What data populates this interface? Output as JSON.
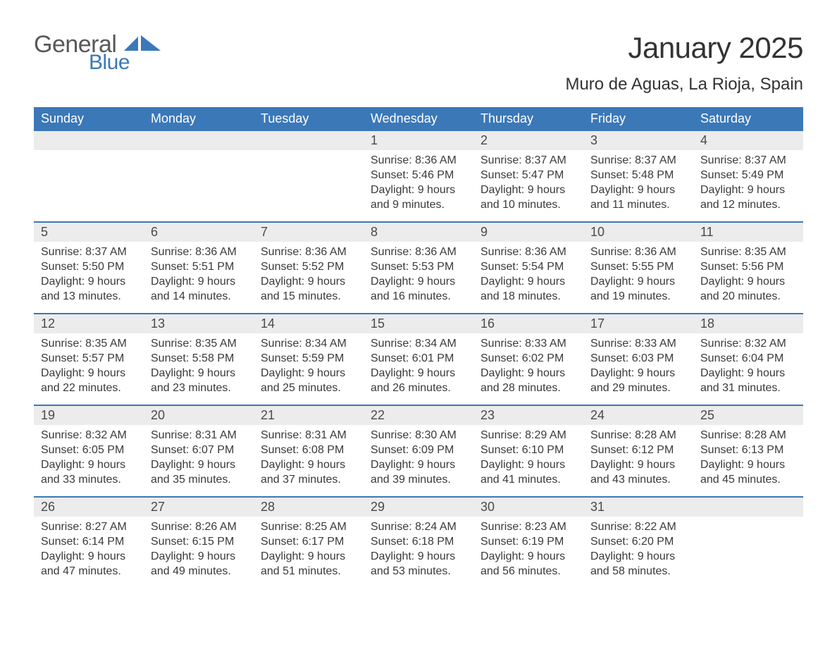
{
  "logo": {
    "word1": "General",
    "word2": "Blue",
    "shape_color": "#3b78b8"
  },
  "title": "January 2025",
  "location": "Muro de Aguas, La Rioja, Spain",
  "styling": {
    "header_bg": "#3b78b8",
    "header_text_color": "#ffffff",
    "daynum_bg": "#ececec",
    "page_bg": "#ffffff",
    "body_text_color": "#3a3a3a",
    "week_border_color": "#3b78b8",
    "title_fontsize": 42,
    "location_fontsize": 24,
    "header_fontsize": 18,
    "daynum_fontsize": 18,
    "body_fontsize": 16
  },
  "day_headers": [
    "Sunday",
    "Monday",
    "Tuesday",
    "Wednesday",
    "Thursday",
    "Friday",
    "Saturday"
  ],
  "weeks": [
    [
      {
        "n": "",
        "lines": []
      },
      {
        "n": "",
        "lines": []
      },
      {
        "n": "",
        "lines": []
      },
      {
        "n": "1",
        "lines": [
          "Sunrise: 8:36 AM",
          "Sunset: 5:46 PM",
          "Daylight: 9 hours",
          "and 9 minutes."
        ]
      },
      {
        "n": "2",
        "lines": [
          "Sunrise: 8:37 AM",
          "Sunset: 5:47 PM",
          "Daylight: 9 hours",
          "and 10 minutes."
        ]
      },
      {
        "n": "3",
        "lines": [
          "Sunrise: 8:37 AM",
          "Sunset: 5:48 PM",
          "Daylight: 9 hours",
          "and 11 minutes."
        ]
      },
      {
        "n": "4",
        "lines": [
          "Sunrise: 8:37 AM",
          "Sunset: 5:49 PM",
          "Daylight: 9 hours",
          "and 12 minutes."
        ]
      }
    ],
    [
      {
        "n": "5",
        "lines": [
          "Sunrise: 8:37 AM",
          "Sunset: 5:50 PM",
          "Daylight: 9 hours",
          "and 13 minutes."
        ]
      },
      {
        "n": "6",
        "lines": [
          "Sunrise: 8:36 AM",
          "Sunset: 5:51 PM",
          "Daylight: 9 hours",
          "and 14 minutes."
        ]
      },
      {
        "n": "7",
        "lines": [
          "Sunrise: 8:36 AM",
          "Sunset: 5:52 PM",
          "Daylight: 9 hours",
          "and 15 minutes."
        ]
      },
      {
        "n": "8",
        "lines": [
          "Sunrise: 8:36 AM",
          "Sunset: 5:53 PM",
          "Daylight: 9 hours",
          "and 16 minutes."
        ]
      },
      {
        "n": "9",
        "lines": [
          "Sunrise: 8:36 AM",
          "Sunset: 5:54 PM",
          "Daylight: 9 hours",
          "and 18 minutes."
        ]
      },
      {
        "n": "10",
        "lines": [
          "Sunrise: 8:36 AM",
          "Sunset: 5:55 PM",
          "Daylight: 9 hours",
          "and 19 minutes."
        ]
      },
      {
        "n": "11",
        "lines": [
          "Sunrise: 8:35 AM",
          "Sunset: 5:56 PM",
          "Daylight: 9 hours",
          "and 20 minutes."
        ]
      }
    ],
    [
      {
        "n": "12",
        "lines": [
          "Sunrise: 8:35 AM",
          "Sunset: 5:57 PM",
          "Daylight: 9 hours",
          "and 22 minutes."
        ]
      },
      {
        "n": "13",
        "lines": [
          "Sunrise: 8:35 AM",
          "Sunset: 5:58 PM",
          "Daylight: 9 hours",
          "and 23 minutes."
        ]
      },
      {
        "n": "14",
        "lines": [
          "Sunrise: 8:34 AM",
          "Sunset: 5:59 PM",
          "Daylight: 9 hours",
          "and 25 minutes."
        ]
      },
      {
        "n": "15",
        "lines": [
          "Sunrise: 8:34 AM",
          "Sunset: 6:01 PM",
          "Daylight: 9 hours",
          "and 26 minutes."
        ]
      },
      {
        "n": "16",
        "lines": [
          "Sunrise: 8:33 AM",
          "Sunset: 6:02 PM",
          "Daylight: 9 hours",
          "and 28 minutes."
        ]
      },
      {
        "n": "17",
        "lines": [
          "Sunrise: 8:33 AM",
          "Sunset: 6:03 PM",
          "Daylight: 9 hours",
          "and 29 minutes."
        ]
      },
      {
        "n": "18",
        "lines": [
          "Sunrise: 8:32 AM",
          "Sunset: 6:04 PM",
          "Daylight: 9 hours",
          "and 31 minutes."
        ]
      }
    ],
    [
      {
        "n": "19",
        "lines": [
          "Sunrise: 8:32 AM",
          "Sunset: 6:05 PM",
          "Daylight: 9 hours",
          "and 33 minutes."
        ]
      },
      {
        "n": "20",
        "lines": [
          "Sunrise: 8:31 AM",
          "Sunset: 6:07 PM",
          "Daylight: 9 hours",
          "and 35 minutes."
        ]
      },
      {
        "n": "21",
        "lines": [
          "Sunrise: 8:31 AM",
          "Sunset: 6:08 PM",
          "Daylight: 9 hours",
          "and 37 minutes."
        ]
      },
      {
        "n": "22",
        "lines": [
          "Sunrise: 8:30 AM",
          "Sunset: 6:09 PM",
          "Daylight: 9 hours",
          "and 39 minutes."
        ]
      },
      {
        "n": "23",
        "lines": [
          "Sunrise: 8:29 AM",
          "Sunset: 6:10 PM",
          "Daylight: 9 hours",
          "and 41 minutes."
        ]
      },
      {
        "n": "24",
        "lines": [
          "Sunrise: 8:28 AM",
          "Sunset: 6:12 PM",
          "Daylight: 9 hours",
          "and 43 minutes."
        ]
      },
      {
        "n": "25",
        "lines": [
          "Sunrise: 8:28 AM",
          "Sunset: 6:13 PM",
          "Daylight: 9 hours",
          "and 45 minutes."
        ]
      }
    ],
    [
      {
        "n": "26",
        "lines": [
          "Sunrise: 8:27 AM",
          "Sunset: 6:14 PM",
          "Daylight: 9 hours",
          "and 47 minutes."
        ]
      },
      {
        "n": "27",
        "lines": [
          "Sunrise: 8:26 AM",
          "Sunset: 6:15 PM",
          "Daylight: 9 hours",
          "and 49 minutes."
        ]
      },
      {
        "n": "28",
        "lines": [
          "Sunrise: 8:25 AM",
          "Sunset: 6:17 PM",
          "Daylight: 9 hours",
          "and 51 minutes."
        ]
      },
      {
        "n": "29",
        "lines": [
          "Sunrise: 8:24 AM",
          "Sunset: 6:18 PM",
          "Daylight: 9 hours",
          "and 53 minutes."
        ]
      },
      {
        "n": "30",
        "lines": [
          "Sunrise: 8:23 AM",
          "Sunset: 6:19 PM",
          "Daylight: 9 hours",
          "and 56 minutes."
        ]
      },
      {
        "n": "31",
        "lines": [
          "Sunrise: 8:22 AM",
          "Sunset: 6:20 PM",
          "Daylight: 9 hours",
          "and 58 minutes."
        ]
      },
      {
        "n": "",
        "lines": []
      }
    ]
  ]
}
